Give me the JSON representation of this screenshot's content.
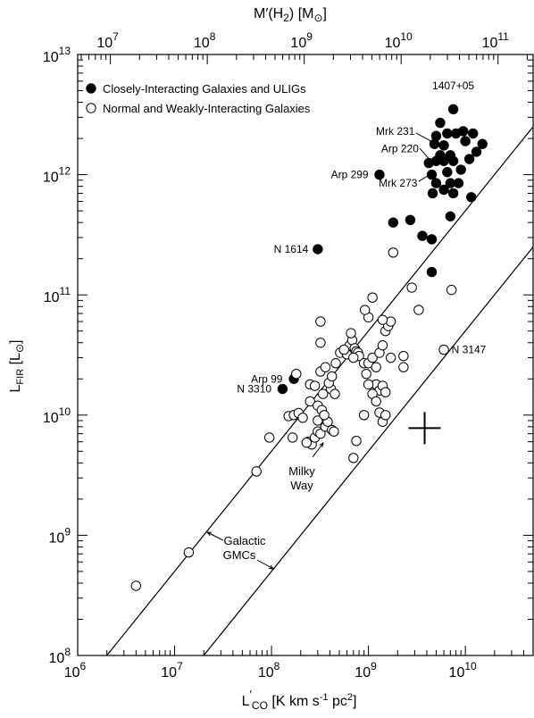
{
  "chart_data": {
    "type": "scatter",
    "xscale": "log",
    "yscale": "log",
    "xlim": [
      1000000,
      50000000000
    ],
    "ylim": [
      100000000,
      10000000000000
    ],
    "x_ticks": [
      {
        "base": "10",
        "exp": "6",
        "value": 1000000
      },
      {
        "base": "10",
        "exp": "7",
        "value": 10000000
      },
      {
        "base": "10",
        "exp": "8",
        "value": 100000000
      },
      {
        "base": "10",
        "exp": "9",
        "value": 1000000000
      },
      {
        "base": "10",
        "exp": "10",
        "value": 10000000000
      }
    ],
    "y_ticks": [
      {
        "base": "10",
        "exp": "8",
        "value": 100000000
      },
      {
        "base": "10",
        "exp": "9",
        "value": 1000000000
      },
      {
        "base": "10",
        "exp": "10",
        "value": 10000000000
      },
      {
        "base": "10",
        "exp": "11",
        "value": 100000000000
      },
      {
        "base": "10",
        "exp": "12",
        "value": 1000000000000
      },
      {
        "base": "10",
        "exp": "13",
        "value": 10000000000000
      }
    ],
    "top_ticks": [
      {
        "base": "10",
        "exp": "7",
        "value": 10000000
      },
      {
        "base": "10",
        "exp": "8",
        "value": 100000000
      },
      {
        "base": "10",
        "exp": "9",
        "value": 1000000000
      },
      {
        "base": "10",
        "exp": "10",
        "value": 10000000000
      },
      {
        "base": "10",
        "exp": "11",
        "value": 100000000000
      }
    ],
    "top_axis_factor": 4.6,
    "xlabel": {
      "main": "L",
      "prime": "′",
      "sub": "CO",
      "units": "[K km s",
      "exp": "-1",
      "tail": " pc",
      "exp2": "2",
      "close": "]"
    },
    "ylabel": {
      "main": "L",
      "sub": "FIR",
      "units": "[L",
      "sun": "⊙",
      "close": "]"
    },
    "top_label": {
      "main": "M′(H",
      "sub": "2",
      "mid": ")  [M",
      "sun": "⊙",
      "close": "]"
    },
    "legend": [
      {
        "label": "Closely-Interacting Galaxies and ULIGs",
        "marker": "filled"
      },
      {
        "label": "Normal and Weakly-Interacting Galaxies",
        "marker": "open"
      }
    ],
    "series": [
      {
        "marker": "filled",
        "points": [
          [
            7500000000,
            3500000000000
          ],
          [
            5500000000,
            2700000000000
          ],
          [
            6500000000,
            2200000000000
          ],
          [
            5000000000,
            2100000000000
          ],
          [
            8000000000,
            2200000000000
          ],
          [
            9500000000,
            2300000000000
          ],
          [
            12000000000,
            2200000000000
          ],
          [
            15000000000,
            1800000000000
          ],
          [
            4800000000,
            1800000000000
          ],
          [
            6000000000,
            1750000000000
          ],
          [
            10000000000,
            1900000000000
          ],
          [
            13000000000,
            1550000000000
          ],
          [
            5500000000,
            1450000000000
          ],
          [
            7000000000,
            1450000000000
          ],
          [
            4200000000,
            1250000000000
          ],
          [
            5000000000,
            1300000000000
          ],
          [
            6000000000,
            1300000000000
          ],
          [
            7500000000,
            1300000000000
          ],
          [
            11000000000,
            1350000000000
          ],
          [
            9000000000,
            1100000000000
          ],
          [
            4500000000,
            1000000000000
          ],
          [
            6500000000,
            1050000000000
          ],
          [
            5000000000,
            850000000000
          ],
          [
            7000000000,
            850000000000
          ],
          [
            8500000000,
            850000000000
          ],
          [
            4600000000,
            700000000000
          ],
          [
            6000000000,
            750000000000
          ],
          [
            7500000000,
            700000000000
          ],
          [
            11500000000,
            650000000000
          ],
          [
            7000000000,
            450000000000
          ],
          [
            1300000000,
            1000000000000
          ],
          [
            1800000000,
            400000000000
          ],
          [
            2700000000,
            420000000000
          ],
          [
            3600000000,
            310000000000
          ],
          [
            4500000000,
            290000000000
          ],
          [
            4500000000,
            155000000000
          ],
          [
            300000000,
            240000000000
          ],
          [
            170000000,
            20000000000
          ],
          [
            130000000,
            16500000000
          ]
        ]
      },
      {
        "marker": "open",
        "points": [
          [
            4000000,
            380000000
          ],
          [
            14000000,
            720000000
          ],
          [
            70000000,
            3400000000
          ],
          [
            95000000,
            6500000000
          ],
          [
            150000000,
            9800000000
          ],
          [
            170000000,
            10000000000
          ],
          [
            190000000,
            10400000000
          ],
          [
            165000000,
            6500000000
          ],
          [
            210000000,
            9500000000
          ],
          [
            240000000,
            6000000000
          ],
          [
            260000000,
            5700000000
          ],
          [
            280000000,
            6500000000
          ],
          [
            230000000,
            5900000000
          ],
          [
            300000000,
            7300000000
          ],
          [
            320000000,
            7000000000
          ],
          [
            360000000,
            8000000000
          ],
          [
            380000000,
            8800000000
          ],
          [
            420000000,
            7500000000
          ],
          [
            440000000,
            7300000000
          ],
          [
            250000000,
            13000000000
          ],
          [
            300000000,
            12000000000
          ],
          [
            330000000,
            11000000000
          ],
          [
            300000000,
            9000000000
          ],
          [
            350000000,
            10000000000
          ],
          [
            250000000,
            18000000000
          ],
          [
            280000000,
            17500000000
          ],
          [
            340000000,
            15000000000
          ],
          [
            410000000,
            16500000000
          ],
          [
            450000000,
            15000000000
          ],
          [
            390000000,
            18500000000
          ],
          [
            180000000,
            22000000000
          ],
          [
            320000000,
            23000000000
          ],
          [
            360000000,
            25000000000
          ],
          [
            420000000,
            21000000000
          ],
          [
            460000000,
            27000000000
          ],
          [
            510000000,
            33000000000
          ],
          [
            560000000,
            35000000000
          ],
          [
            600000000,
            32000000000
          ],
          [
            640000000,
            38000000000
          ],
          [
            680000000,
            42000000000
          ],
          [
            720000000,
            36000000000
          ],
          [
            750000000,
            34000000000
          ],
          [
            780000000,
            33000000000
          ],
          [
            800000000,
            31000000000
          ],
          [
            700000000,
            30000000000
          ],
          [
            660000000,
            48000000000
          ],
          [
            560000000,
            35000000000
          ],
          [
            900000000,
            27000000000
          ],
          [
            950000000,
            22000000000
          ],
          [
            1000000000,
            27000000000
          ],
          [
            1100000000,
            30000000000
          ],
          [
            1200000000,
            25000000000
          ],
          [
            1300000000,
            33000000000
          ],
          [
            1400000000,
            38000000000
          ],
          [
            1500000000,
            50000000000
          ],
          [
            1600000000,
            55000000000
          ],
          [
            1700000000,
            60000000000
          ],
          [
            1400000000,
            62000000000
          ],
          [
            1000000000,
            65000000000
          ],
          [
            920000000,
            75000000000
          ],
          [
            1100000000,
            95000000000
          ],
          [
            1200000000,
            18000000000
          ],
          [
            1300000000,
            16000000000
          ],
          [
            1400000000,
            17500000000
          ],
          [
            1500000000,
            15500000000
          ],
          [
            1700000000,
            30000000000
          ],
          [
            2300000000,
            31000000000
          ],
          [
            2300000000,
            25000000000
          ],
          [
            1000000000,
            18000000000
          ],
          [
            1100000000,
            15000000000
          ],
          [
            1200000000,
            13000000000
          ],
          [
            1300000000,
            10500000000
          ],
          [
            1400000000,
            8800000000
          ],
          [
            1500000000,
            10000000000
          ],
          [
            3300000000,
            75000000000
          ],
          [
            2800000000,
            115000000000
          ],
          [
            1800000000,
            225000000000
          ],
          [
            7200000000,
            110000000000
          ],
          [
            6000000000,
            35000000000
          ],
          [
            320000000,
            40000000000
          ],
          [
            320000000,
            60000000000
          ],
          [
            700000000,
            4400000000
          ],
          [
            750000000,
            6100000000
          ],
          [
            900000000,
            10000000000
          ]
        ]
      }
    ],
    "lines": [
      {
        "label": "Galactic GMCs",
        "slope": 1,
        "intercept_log": 1.7
      },
      {
        "label": "",
        "slope": 1,
        "intercept_log": 0.7
      }
    ],
    "line_label": [
      "Galactic",
      "GMCs"
    ],
    "annotations": [
      {
        "text": "1407+05",
        "anchor": "middle",
        "x": 7500000000,
        "y": 5500000000000
      },
      {
        "text": "Mrk 231",
        "anchor": "end",
        "x": 3000000000,
        "y": 2300000000000
      },
      {
        "text": "Arp 220",
        "anchor": "end",
        "x": 3300000000,
        "y": 1650000000000
      },
      {
        "text": "Arp 299",
        "anchor": "end",
        "x": 1000000000,
        "y": 1000000000000
      },
      {
        "text": "Mrk 273",
        "anchor": "end",
        "x": 3200000000,
        "y": 850000000000
      },
      {
        "text": "N 1614",
        "anchor": "end",
        "x": 240000000,
        "y": 240000000000
      },
      {
        "text": "Arp 99",
        "anchor": "end",
        "x": 130000000,
        "y": 20000000000
      },
      {
        "text": "N 3310",
        "anchor": "end",
        "x": 100000000,
        "y": 16500000000
      },
      {
        "text": "N 3147",
        "anchor": "start",
        "x": 7200000000,
        "y": 35000000000
      }
    ],
    "mw_label": [
      "Milky",
      "Way"
    ],
    "milky_way": {
      "x": 3800000000,
      "y": 7800000000
    }
  }
}
